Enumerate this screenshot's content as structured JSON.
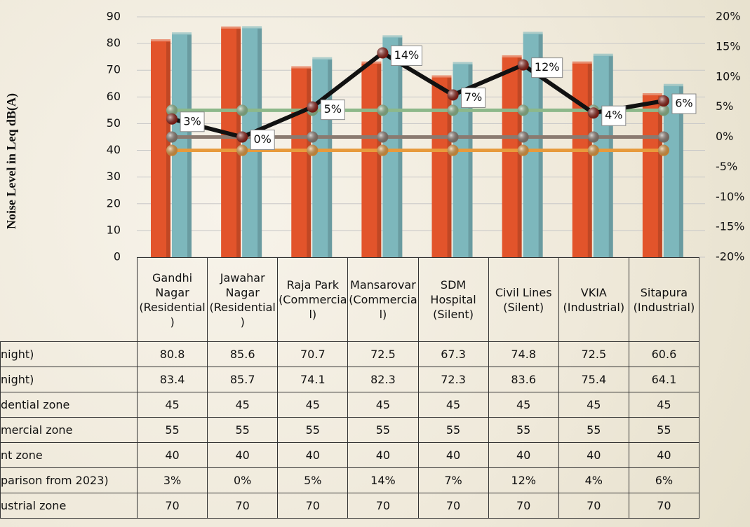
{
  "chart_data": {
    "type": "bar",
    "y_label": "Noise Level in Leq dB(A)",
    "categories": [
      "Gandhi Nagar (Residential)",
      "Jawahar Nagar (Residential)",
      "Raja Park (Commercial)",
      "Mansarovar (Commercial)",
      "SDM Hospital (Silent)",
      "Civil Lines (Silent)",
      "VKIA (Industrial)",
      "Sitapura (Industrial)"
    ],
    "series": [
      {
        "name": "night)",
        "type": "bar",
        "color": "#e2542b",
        "values": [
          80.8,
          85.6,
          70.7,
          72.5,
          67.3,
          74.8,
          72.5,
          60.6
        ]
      },
      {
        "name": "night)",
        "type": "bar",
        "color": "#7db7bc",
        "values": [
          83.4,
          85.7,
          74.1,
          82.3,
          72.3,
          83.6,
          75.4,
          64.1
        ]
      },
      {
        "name": "dential zone",
        "type": "line",
        "color": "#8a7a70",
        "values": [
          45,
          45,
          45,
          45,
          45,
          45,
          45,
          45
        ]
      },
      {
        "name": "mercial zone",
        "type": "line",
        "color": "#8db88a",
        "values": [
          55,
          55,
          55,
          55,
          55,
          55,
          55,
          55
        ]
      },
      {
        "name": "nt zone",
        "type": "line",
        "color": "#e79a3c",
        "values": [
          40,
          40,
          40,
          40,
          40,
          40,
          40,
          40
        ]
      },
      {
        "name": "parison from 2023)",
        "type": "line",
        "axis": "y2",
        "color": "#111111",
        "marker_color": "#8b1a10",
        "values": [
          3,
          0,
          5,
          14,
          7,
          12,
          4,
          6
        ],
        "value_labels": [
          "3%",
          "0%",
          "5%",
          "14%",
          "7%",
          "12%",
          "4%",
          "6%"
        ]
      },
      {
        "name": "ustrial zone",
        "type": "table",
        "values": [
          70,
          70,
          70,
          70,
          70,
          70,
          70,
          70
        ]
      }
    ],
    "ylim": [
      0,
      90
    ],
    "yticks": [
      0,
      10,
      20,
      30,
      40,
      50,
      60,
      70,
      80,
      90
    ],
    "y2lim": [
      -20,
      20
    ],
    "y2ticks": [
      {
        "value": -20,
        "label": "-20%"
      },
      {
        "value": -15,
        "label": "-15%"
      },
      {
        "value": -10,
        "label": "-10%"
      },
      {
        "value": -5,
        "label": "-5%"
      },
      {
        "value": 0,
        "label": "0%"
      },
      {
        "value": 5,
        "label": "5%"
      },
      {
        "value": 10,
        "label": "10%"
      },
      {
        "value": 15,
        "label": "15%"
      },
      {
        "value": 20,
        "label": "20%"
      }
    ],
    "grid": true
  }
}
